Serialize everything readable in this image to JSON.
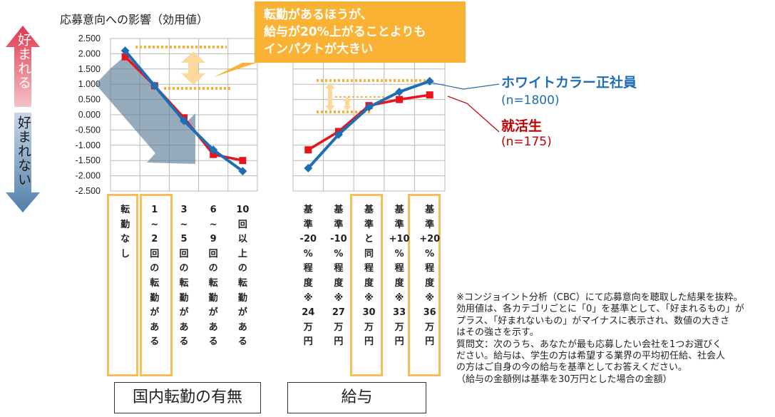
{
  "title": "応募意向への影響（効用値）",
  "callout": {
    "lines": [
      "転勤があるほうが、",
      "給与が20%上がることよりも",
      "インパクトが大きい"
    ]
  },
  "arrow_labels": {
    "up": "好まれる",
    "down": "好まれない"
  },
  "legend": {
    "white": {
      "label": "ホワイトカラー正社員",
      "n": "(n=1800)",
      "color": "#1f6eb4"
    },
    "job": {
      "label": "就活生",
      "n": "(n=175)",
      "color": "#c00000"
    }
  },
  "groups": {
    "transfer": "国内転勤の有無",
    "salary": "給与"
  },
  "categories": {
    "transfer": [
      [
        "転",
        "勤",
        "な",
        "し"
      ],
      [
        "1",
        "~",
        "2",
        "回",
        "の",
        "転",
        "勤",
        "が",
        "あ",
        "る"
      ],
      [
        "3",
        "~",
        "5",
        "回",
        "の",
        "転",
        "勤",
        "が",
        "あ",
        "る"
      ],
      [
        "6",
        "~",
        "9",
        "回",
        "の",
        "転",
        "勤",
        "が",
        "あ",
        "る"
      ],
      [
        "10",
        "回",
        "以",
        "上",
        "の",
        "転",
        "勤",
        "が",
        "あ",
        "る"
      ]
    ],
    "salary": [
      [
        "基",
        "準",
        "-20",
        "%",
        "程",
        "度",
        "※",
        "24",
        "万",
        "円"
      ],
      [
        "基",
        "準",
        "-10",
        "%",
        "程",
        "度",
        "※",
        "27",
        "万",
        "円"
      ],
      [
        "基",
        "準",
        "と",
        "同",
        "程",
        "度",
        "※",
        "30",
        "万",
        "円"
      ],
      [
        "基",
        "準",
        "+10",
        "%",
        "程",
        "度",
        "※",
        "33",
        "万",
        "円"
      ],
      [
        "基",
        "準",
        "+20",
        "%",
        "程",
        "度",
        "※",
        "36",
        "万",
        "円"
      ]
    ]
  },
  "note": [
    "※コンジョイント分析（CBC）にて応募意向を聴取した結果を抜粋。",
    "効用値は、各カテゴリごとに「0」を基準として、「好まれるもの」が",
    "プラス、「好まれないもの」がマイナスに表示され、数値の大きさ",
    "はその強さを示す。",
    "質問文：次のうち、あなたが最も応募したい会社を1つお選びく",
    "ださい。給与は、学生の方は希望する業界の平均初任給、社会人",
    "の方はご自身の今の給与を基準としてお答えください。",
    "（給与の金額例は基準を30万円とした場合の金額）"
  ],
  "colors": {
    "white_collar": "#1f6eb4",
    "job_seeker": "#e8141b",
    "highlight": "#f7bf5a",
    "callout": "#f9b233",
    "grid": "#b8b8b8"
  },
  "chart_data": [
    {
      "type": "line",
      "title": "応募意向への影響（効用値）",
      "group": "国内転勤の有無",
      "categories": [
        "転勤なし",
        "1~2回の転勤がある",
        "3~5回の転勤がある",
        "6~9回の転勤がある",
        "10回以上の転勤がある"
      ],
      "series": [
        {
          "name": "ホワイトカラー正社員",
          "values": [
            2.1,
            0.95,
            -0.2,
            -1.15,
            -1.85
          ]
        },
        {
          "name": "就活生",
          "values": [
            1.9,
            0.95,
            -0.1,
            -1.3,
            -1.5
          ]
        }
      ],
      "ylim": [
        -2.5,
        2.5
      ],
      "yticks": [
        "2.500",
        "2.000",
        "1.500",
        "1.000",
        "0.500",
        "0.000",
        "-0.500",
        "-1.000",
        "-1.500",
        "-2.000",
        "-2.500"
      ],
      "grid": true
    },
    {
      "type": "line",
      "group": "給与",
      "categories": [
        "基準-20%程度※24万円",
        "基準-10%程度※27万円",
        "基準と同程度※30万円",
        "基準+10%程度※33万円",
        "基準+20%程度※36万円"
      ],
      "series": [
        {
          "name": "ホワイトカラー正社員",
          "values": [
            -1.75,
            -0.65,
            0.25,
            0.75,
            1.1
          ]
        },
        {
          "name": "就活生",
          "values": [
            -1.15,
            -0.55,
            0.3,
            0.5,
            0.65
          ]
        }
      ],
      "ylim": [
        -2.5,
        2.5
      ],
      "grid": true
    }
  ]
}
